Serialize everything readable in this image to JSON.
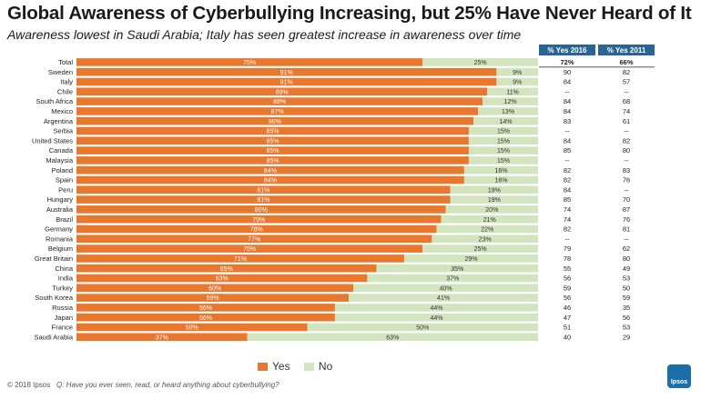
{
  "title": "Global Awareness of Cyberbullying Increasing, but 25% Have Never Heard of It",
  "subtitle": "Awareness lowest in Saudi Arabia; Italy has seen greatest increase in awareness over time",
  "footer": {
    "copyright": "© 2018 Ipsos",
    "question": "Q: Have you ever seen, read, or heard anything about cyberbullying?"
  },
  "logo_text": "Ipsos",
  "colors": {
    "yes": "#e8782e",
    "no": "#d2e5bf",
    "header": "#2a6496",
    "logo": "#1b6fa8"
  },
  "chart_data": {
    "type": "bar",
    "orientation": "horizontal",
    "stacked": true,
    "unit": "%",
    "categories": [
      "Total",
      "Sweden",
      "Italy",
      "Chile",
      "South Africa",
      "Mexico",
      "Argentina",
      "Serbia",
      "United States",
      "Canada",
      "Malaysia",
      "Poland",
      "Spain",
      "Peru",
      "Hungary",
      "Australia",
      "Brazil",
      "Germany",
      "Romania",
      "Belgium",
      "Great Britain",
      "China",
      "India",
      "Turkey",
      "South Korea",
      "Russia",
      "Japan",
      "France",
      "Saudi Arabia"
    ],
    "series": [
      {
        "name": "Yes",
        "values": [
          75,
          91,
          91,
          89,
          88,
          87,
          86,
          85,
          85,
          85,
          85,
          84,
          84,
          81,
          81,
          80,
          79,
          78,
          77,
          75,
          71,
          65,
          63,
          60,
          59,
          56,
          56,
          50,
          37
        ]
      },
      {
        "name": "No",
        "values": [
          25,
          9,
          9,
          11,
          12,
          13,
          14,
          15,
          15,
          15,
          15,
          16,
          16,
          19,
          19,
          20,
          21,
          22,
          23,
          25,
          29,
          35,
          37,
          40,
          41,
          44,
          44,
          50,
          63
        ]
      }
    ],
    "xlim": [
      0,
      100
    ],
    "legend_position": "bottom",
    "table": {
      "headers": [
        "% Yes 2016",
        "% Yes 2011"
      ],
      "rows": [
        [
          "72%",
          "66%"
        ],
        [
          "90",
          "82"
        ],
        [
          "84",
          "57"
        ],
        [
          "--",
          "--"
        ],
        [
          "84",
          "68"
        ],
        [
          "84",
          "74"
        ],
        [
          "83",
          "61"
        ],
        [
          "--",
          "--"
        ],
        [
          "84",
          "82"
        ],
        [
          "85",
          "80"
        ],
        [
          "--",
          "--"
        ],
        [
          "82",
          "83"
        ],
        [
          "82",
          "76"
        ],
        [
          "84",
          "--"
        ],
        [
          "85",
          "70"
        ],
        [
          "74",
          "87"
        ],
        [
          "74",
          "76"
        ],
        [
          "82",
          "81"
        ],
        [
          "--",
          "--"
        ],
        [
          "79",
          "62"
        ],
        [
          "78",
          "80"
        ],
        [
          "55",
          "49"
        ],
        [
          "56",
          "53"
        ],
        [
          "59",
          "50"
        ],
        [
          "56",
          "59"
        ],
        [
          "46",
          "35"
        ],
        [
          "47",
          "56"
        ],
        [
          "51",
          "53"
        ],
        [
          "40",
          "29"
        ]
      ]
    }
  }
}
